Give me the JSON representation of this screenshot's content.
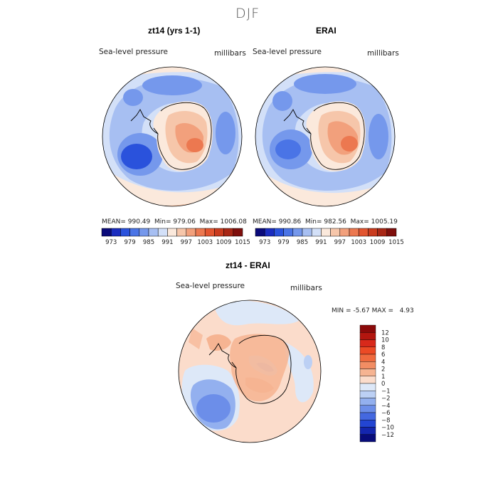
{
  "figure": {
    "title": "DJF",
    "variable": "Sea-level pressure",
    "units": "millibars"
  },
  "panels": [
    {
      "title": "zt14 (yrs 1-1)",
      "stats": {
        "mean": "990.49",
        "min": "979.06",
        "max": "1006.08"
      }
    },
    {
      "title": "ERAI",
      "stats": {
        "mean": "990.86",
        "min": "982.56",
        "max": "1005.19"
      }
    },
    {
      "title": "zt14 - ERAI",
      "stats": {
        "min": "-5.67",
        "max": "4.93"
      }
    }
  ],
  "labels": {
    "mean": "MEAN=",
    "min": "Min=",
    "max": "Max=",
    "diff_min": "MIN =",
    "diff_max": "MAX ="
  },
  "colorbar_top": {
    "ticks": [
      "973",
      "979",
      "985",
      "991",
      "997",
      "1003",
      "1009",
      "1015"
    ],
    "colors": [
      "#0a0a7a",
      "#1a2cbf",
      "#2a52dc",
      "#4a74e6",
      "#7598ec",
      "#a7bff2",
      "#d3e0f8",
      "#fbe9dc",
      "#f6c6aa",
      "#f2a07c",
      "#ec7850",
      "#e25530",
      "#c93b1e",
      "#a82715",
      "#7f0f0c"
    ]
  },
  "colorbar_diff": {
    "ticks": [
      "12",
      "10",
      "8",
      "6",
      "4",
      "2",
      "1",
      "0",
      "−1",
      "−2",
      "−4",
      "−6",
      "−8",
      "−10",
      "−12"
    ],
    "colors": [
      "#8b0a0a",
      "#b3160f",
      "#d8291b",
      "#ec4a25",
      "#f06a3e",
      "#f28d63",
      "#f6b492",
      "#fbdccb",
      "#dde8f8",
      "#bcd0f4",
      "#93b0ef",
      "#6c8ee9",
      "#4468e0",
      "#2345d2",
      "#1426ae",
      "#080c7a"
    ]
  }
}
